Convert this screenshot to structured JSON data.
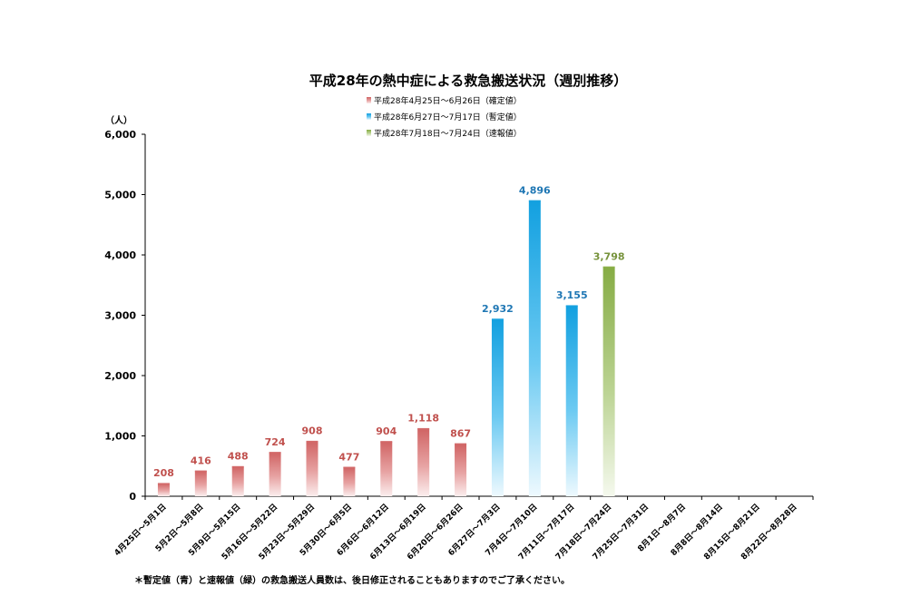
{
  "chart_data": {
    "type": "bar",
    "title": "平成28年の熱中症による救急搬送状況（週別推移）",
    "ylabel": "（人）",
    "ylim": [
      0,
      6000
    ],
    "yticks": [
      "0",
      "1,000",
      "2,000",
      "3,000",
      "4,000",
      "5,000",
      "6,000"
    ],
    "ytick_values": [
      0,
      1000,
      2000,
      3000,
      4000,
      5000,
      6000
    ],
    "grid": false,
    "legend_position": "top-center",
    "categories": [
      "4月25日～5月1日",
      "5月2日～5月8日",
      "5月9日～5月15日",
      "5月16日～5月22日",
      "5月23日～5月29日",
      "5月30日～6月5日",
      "6月6日～6月12日",
      "6月13日～6月19日",
      "6月20日～6月26日",
      "6月27日～7月3日",
      "7月4日～7月10日",
      "7月11日～7月17日",
      "7月18日～7月24日",
      "7月25日～7月31日",
      "8月1日～8月7日",
      "8月8日～8月14日",
      "8月15日～8月21日",
      "8月22日～8月28日"
    ],
    "series": [
      {
        "name": "平成28年4月25日～6月26日（確定値）",
        "color": "#d36b6b",
        "values": [
          208,
          416,
          488,
          724,
          908,
          477,
          904,
          1118,
          867,
          null,
          null,
          null,
          null,
          null,
          null,
          null,
          null,
          null
        ],
        "labels": [
          "208",
          "416",
          "488",
          "724",
          "908",
          "477",
          "904",
          "1,118",
          "867"
        ]
      },
      {
        "name": "平成28年6月27日～7月17日（暫定値）",
        "color": "#1aa3e0",
        "values": [
          null,
          null,
          null,
          null,
          null,
          null,
          null,
          null,
          null,
          2932,
          4896,
          3155,
          null,
          null,
          null,
          null,
          null,
          null
        ],
        "labels": [
          "2,932",
          "4,896",
          "3,155"
        ]
      },
      {
        "name": "平成28年7月18日～7月24日（速報値）",
        "color": "#8db04a",
        "values": [
          null,
          null,
          null,
          null,
          null,
          null,
          null,
          null,
          null,
          null,
          null,
          null,
          3798,
          null,
          null,
          null,
          null,
          null
        ],
        "labels": [
          "3,798"
        ]
      }
    ],
    "label_colors": [
      "#c0504d",
      "#1f77b4",
      "#77933c"
    ]
  },
  "footnote": "＊暫定値（青）と速報値（緑）の救急搬送人員数は、後日修正されることもありますのでご了承ください。"
}
